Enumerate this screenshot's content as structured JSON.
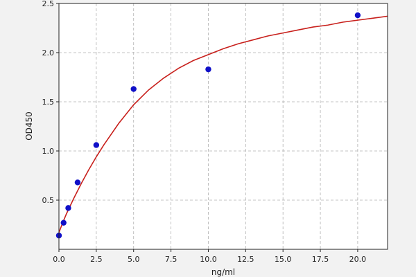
{
  "chart_data": {
    "type": "scatter",
    "xlabel": "ng/ml",
    "ylabel": "OD450",
    "xlim": [
      0,
      22
    ],
    "ylim": [
      0,
      2.5
    ],
    "y_axis_min_shown": 0.0,
    "grid": true,
    "x_ticks": [
      {
        "value": 0.0,
        "label": "0.0"
      },
      {
        "value": 2.5,
        "label": "2.5"
      },
      {
        "value": 5.0,
        "label": "5.0"
      },
      {
        "value": 7.5,
        "label": "7.5"
      },
      {
        "value": 10.0,
        "label": "10.0"
      },
      {
        "value": 12.5,
        "label": "12.5"
      },
      {
        "value": 15.0,
        "label": "15.0"
      },
      {
        "value": 17.5,
        "label": "17.5"
      },
      {
        "value": 20.0,
        "label": "20.0"
      }
    ],
    "y_ticks": [
      {
        "value": 0.5,
        "label": "0.5"
      },
      {
        "value": 1.0,
        "label": "1.0"
      },
      {
        "value": 1.5,
        "label": "1.5"
      },
      {
        "value": 2.0,
        "label": "2.0"
      },
      {
        "value": 2.5,
        "label": "2.5"
      }
    ],
    "points": {
      "color": "#1010c8",
      "x": [
        0,
        0.3125,
        0.625,
        1.25,
        2.5,
        5,
        10,
        20
      ],
      "y": [
        0.14,
        0.27,
        0.42,
        0.68,
        1.06,
        1.63,
        1.83,
        2.38
      ]
    },
    "fit_curve": {
      "color": "#c8201c",
      "x": [
        0,
        0.25,
        0.5,
        0.75,
        1,
        1.5,
        2,
        2.5,
        3,
        4,
        5,
        6,
        7,
        8,
        9,
        10,
        11,
        12,
        13,
        14,
        15,
        16,
        17,
        18,
        19,
        20,
        21,
        22
      ],
      "y": [
        0.17,
        0.27,
        0.36,
        0.44,
        0.52,
        0.67,
        0.81,
        0.94,
        1.06,
        1.28,
        1.47,
        1.62,
        1.74,
        1.84,
        1.92,
        1.98,
        2.04,
        2.09,
        2.13,
        2.17,
        2.2,
        2.23,
        2.26,
        2.28,
        2.31,
        2.33,
        2.35,
        2.37
      ]
    }
  }
}
